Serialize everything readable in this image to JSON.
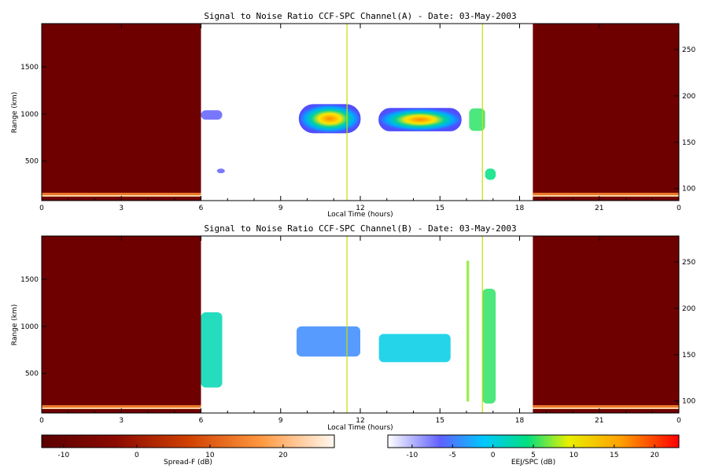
{
  "chart_data": [
    {
      "type": "heatmap",
      "title": "Signal to Noise Ratio CCF-SPC Channel(A) - Date: 03-May-2003",
      "xlabel": "Local Time (hours)",
      "ylabel": "Range (km)",
      "xlim": [
        0,
        24
      ],
      "ylim": [
        80,
        1960
      ],
      "y2lim": [
        87,
        278
      ],
      "x_ticks": [
        "0",
        "3",
        "6",
        "9",
        "12",
        "15",
        "18",
        "21",
        "0"
      ],
      "y_ticks": [
        "500",
        "1000",
        "1500"
      ],
      "y2_ticks": [
        "100",
        "150",
        "200",
        "250"
      ],
      "spread_f_regions": [
        {
          "from": 0,
          "to": 6
        },
        {
          "from": 18.5,
          "to": 24
        }
      ],
      "echo_blobs": [
        {
          "x0": 6.0,
          "x1": 6.8,
          "y0": 940,
          "y1": 1040,
          "level": -8
        },
        {
          "x0": 9.7,
          "x1": 12.0,
          "y0": 800,
          "y1": 1100,
          "level": 15
        },
        {
          "x0": 12.7,
          "x1": 15.8,
          "y0": 820,
          "y1": 1060,
          "level": 14
        },
        {
          "x0": 16.1,
          "x1": 16.7,
          "y0": 820,
          "y1": 1060,
          "level": 3
        },
        {
          "x0": 16.7,
          "x1": 17.1,
          "y0": 300,
          "y1": 420,
          "level": 2
        },
        {
          "x0": 6.6,
          "x1": 6.9,
          "y0": 370,
          "y1": 420,
          "level": -8
        }
      ],
      "marker_lines": [
        11.5,
        16.6
      ]
    },
    {
      "type": "heatmap",
      "title": "Signal to Noise Ratio CCF-SPC Channel(B) - Date: 03-May-2003",
      "xlabel": "Local Time (hours)",
      "ylabel": "Range (km)",
      "xlim": [
        0,
        24
      ],
      "ylim": [
        80,
        1960
      ],
      "y2lim": [
        87,
        278
      ],
      "x_ticks": [
        "0",
        "3",
        "6",
        "9",
        "12",
        "15",
        "18",
        "21",
        "0"
      ],
      "y_ticks": [
        "500",
        "1000",
        "1500"
      ],
      "y2_ticks": [
        "100",
        "150",
        "200",
        "250"
      ],
      "spread_f_regions": [
        {
          "from": 0,
          "to": 6
        },
        {
          "from": 18.5,
          "to": 24
        }
      ],
      "echo_blobs": [
        {
          "x0": 6.0,
          "x1": 6.8,
          "y0": 350,
          "y1": 1150,
          "level": 0
        },
        {
          "x0": 9.6,
          "x1": 12.0,
          "y0": 680,
          "y1": 1000,
          "level": -6
        },
        {
          "x0": 12.7,
          "x1": 15.4,
          "y0": 620,
          "y1": 920,
          "level": -2
        },
        {
          "x0": 16.0,
          "x1": 16.1,
          "y0": 200,
          "y1": 1700,
          "level": 5
        },
        {
          "x0": 16.6,
          "x1": 17.1,
          "y0": 180,
          "y1": 1400,
          "level": 3
        }
      ],
      "marker_lines": [
        11.5,
        16.6
      ]
    }
  ],
  "colorbars": {
    "spread_f": {
      "label": "Spread-F (dB)",
      "ticks": [
        "-10",
        "0",
        "10",
        "20"
      ],
      "range": [
        -13,
        27
      ]
    },
    "eej_spc": {
      "label": "EEJ/SPC (dB)",
      "ticks": [
        "-10",
        "-5",
        "0",
        "5",
        "10",
        "15",
        "20"
      ],
      "range": [
        -13,
        23
      ]
    }
  },
  "colors": {
    "spread_f_bg": "#6e0000",
    "marker_line": "#c8e000"
  }
}
